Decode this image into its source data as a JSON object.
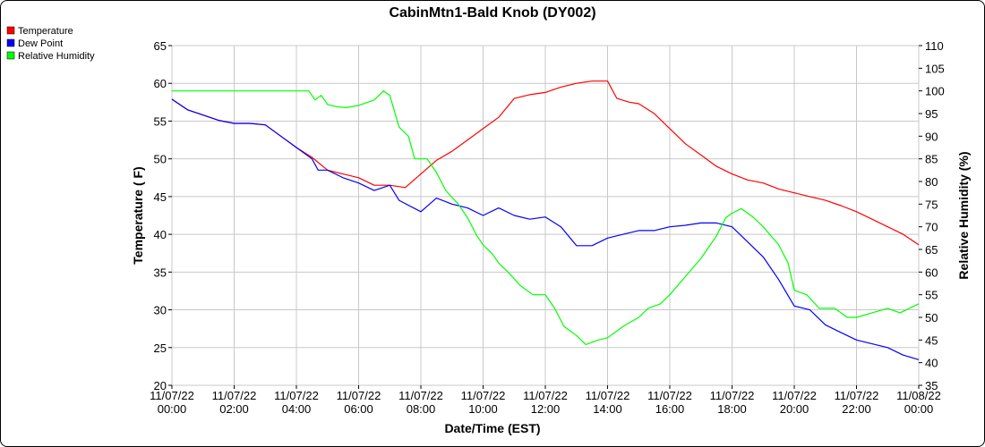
{
  "chart_data": {
    "type": "line",
    "title": "CabinMtn1-Bald Knob (DY002)",
    "xlabel": "Date/Time (EST)",
    "ylabel_left": "Temperature ( F)",
    "ylabel_right": "Relative Humidity (%)",
    "ylim_left": [
      20,
      65
    ],
    "yticks_left": [
      20,
      25,
      30,
      35,
      40,
      45,
      50,
      55,
      60,
      65
    ],
    "ylim_right": [
      35,
      110
    ],
    "yticks_right": [
      35,
      40,
      45,
      50,
      55,
      60,
      65,
      70,
      75,
      80,
      85,
      90,
      95,
      100,
      105,
      110
    ],
    "xlim": [
      0,
      24
    ],
    "x_ticks": [
      {
        "x": 0,
        "date": "11/07/22",
        "time": "00:00"
      },
      {
        "x": 2,
        "date": "11/07/22",
        "time": "02:00"
      },
      {
        "x": 4,
        "date": "11/07/22",
        "time": "04:00"
      },
      {
        "x": 6,
        "date": "11/07/22",
        "time": "06:00"
      },
      {
        "x": 8,
        "date": "11/07/22",
        "time": "08:00"
      },
      {
        "x": 10,
        "date": "11/07/22",
        "time": "10:00"
      },
      {
        "x": 12,
        "date": "11/07/22",
        "time": "12:00"
      },
      {
        "x": 14,
        "date": "11/07/22",
        "time": "14:00"
      },
      {
        "x": 16,
        "date": "11/07/22",
        "time": "16:00"
      },
      {
        "x": 18,
        "date": "11/07/22",
        "time": "18:00"
      },
      {
        "x": 20,
        "date": "11/07/22",
        "time": "20:00"
      },
      {
        "x": 22,
        "date": "11/07/22",
        "time": "22:00"
      },
      {
        "x": 24,
        "date": "11/08/22",
        "time": "00:00"
      }
    ],
    "grid": true,
    "legend_position": "top-left",
    "series": [
      {
        "name": "Temperature",
        "color": "#ff0000",
        "axis": "left",
        "points": [
          [
            0,
            57.9
          ],
          [
            0.5,
            56.5
          ],
          [
            1,
            55.8
          ],
          [
            1.5,
            55.1
          ],
          [
            2,
            54.7
          ],
          [
            2.5,
            54.7
          ],
          [
            3,
            54.5
          ],
          [
            3.5,
            53.0
          ],
          [
            4,
            51.5
          ],
          [
            4.5,
            50.2
          ],
          [
            5,
            48.5
          ],
          [
            5.5,
            48.0
          ],
          [
            6,
            47.5
          ],
          [
            6.5,
            46.5
          ],
          [
            7,
            46.5
          ],
          [
            7.5,
            46.2
          ],
          [
            8,
            48.0
          ],
          [
            8.5,
            49.8
          ],
          [
            9,
            51.0
          ],
          [
            9.5,
            52.5
          ],
          [
            10,
            54.0
          ],
          [
            10.5,
            55.5
          ],
          [
            11,
            58.0
          ],
          [
            11.5,
            58.5
          ],
          [
            12,
            58.8
          ],
          [
            12.5,
            59.5
          ],
          [
            13,
            60.0
          ],
          [
            13.5,
            60.3
          ],
          [
            14,
            60.3
          ],
          [
            14.3,
            58.0
          ],
          [
            14.7,
            57.5
          ],
          [
            15,
            57.3
          ],
          [
            15.5,
            56.0
          ],
          [
            16,
            54.0
          ],
          [
            16.5,
            52.0
          ],
          [
            17,
            50.5
          ],
          [
            17.5,
            49.0
          ],
          [
            18,
            48.0
          ],
          [
            18.5,
            47.2
          ],
          [
            19,
            46.8
          ],
          [
            19.5,
            46.0
          ],
          [
            20,
            45.5
          ],
          [
            20.5,
            45.0
          ],
          [
            21,
            44.5
          ],
          [
            21.5,
            43.8
          ],
          [
            22,
            43.0
          ],
          [
            22.5,
            42.0
          ],
          [
            23,
            41.0
          ],
          [
            23.5,
            40.0
          ],
          [
            24,
            38.6
          ]
        ]
      },
      {
        "name": "Dew Point",
        "color": "#0000ff",
        "axis": "left",
        "points": [
          [
            0,
            57.9
          ],
          [
            0.5,
            56.5
          ],
          [
            1,
            55.8
          ],
          [
            1.5,
            55.1
          ],
          [
            2,
            54.7
          ],
          [
            2.5,
            54.7
          ],
          [
            3,
            54.5
          ],
          [
            3.5,
            53.0
          ],
          [
            4,
            51.5
          ],
          [
            4.5,
            50.0
          ],
          [
            4.7,
            48.5
          ],
          [
            5,
            48.5
          ],
          [
            5.5,
            47.5
          ],
          [
            6,
            46.8
          ],
          [
            6.5,
            45.8
          ],
          [
            7,
            46.5
          ],
          [
            7.3,
            44.5
          ],
          [
            8,
            43.0
          ],
          [
            8.5,
            44.8
          ],
          [
            9,
            44.0
          ],
          [
            9.5,
            43.5
          ],
          [
            10,
            42.5
          ],
          [
            10.5,
            43.5
          ],
          [
            11,
            42.5
          ],
          [
            11.5,
            42.0
          ],
          [
            12,
            42.3
          ],
          [
            12.5,
            41.0
          ],
          [
            13,
            38.5
          ],
          [
            13.5,
            38.5
          ],
          [
            14,
            39.5
          ],
          [
            14.5,
            40.0
          ],
          [
            15,
            40.5
          ],
          [
            15.5,
            40.5
          ],
          [
            16,
            41.0
          ],
          [
            16.5,
            41.2
          ],
          [
            17,
            41.5
          ],
          [
            17.5,
            41.5
          ],
          [
            18,
            41.0
          ],
          [
            18.5,
            39.0
          ],
          [
            19,
            37.0
          ],
          [
            19.5,
            34.0
          ],
          [
            20,
            30.5
          ],
          [
            20.5,
            30.0
          ],
          [
            21,
            28.0
          ],
          [
            21.5,
            27.0
          ],
          [
            22,
            26.0
          ],
          [
            22.5,
            25.5
          ],
          [
            23,
            25.0
          ],
          [
            23.5,
            24.0
          ],
          [
            24,
            23.4
          ]
        ]
      },
      {
        "name": "Relative Humidity",
        "color": "#00ff00",
        "axis": "right",
        "points": [
          [
            0,
            100
          ],
          [
            1,
            100
          ],
          [
            2,
            100
          ],
          [
            3,
            100
          ],
          [
            4,
            100
          ],
          [
            4.4,
            100
          ],
          [
            4.6,
            98
          ],
          [
            4.8,
            99
          ],
          [
            5,
            97
          ],
          [
            5.3,
            96.5
          ],
          [
            5.6,
            96.3
          ],
          [
            6,
            96.8
          ],
          [
            6.5,
            98
          ],
          [
            6.8,
            100
          ],
          [
            7,
            99
          ],
          [
            7.3,
            92
          ],
          [
            7.6,
            90
          ],
          [
            7.8,
            85
          ],
          [
            8.2,
            85
          ],
          [
            8.5,
            82
          ],
          [
            8.8,
            78
          ],
          [
            9.2,
            75
          ],
          [
            9.5,
            72
          ],
          [
            9.8,
            68
          ],
          [
            10,
            66
          ],
          [
            10.3,
            64
          ],
          [
            10.5,
            62
          ],
          [
            10.8,
            60
          ],
          [
            11.2,
            57
          ],
          [
            11.6,
            55
          ],
          [
            12,
            55
          ],
          [
            12.3,
            52
          ],
          [
            12.6,
            48
          ],
          [
            13,
            46
          ],
          [
            13.3,
            44
          ],
          [
            13.7,
            45
          ],
          [
            14,
            45.5
          ],
          [
            14.5,
            48
          ],
          [
            15,
            50
          ],
          [
            15.3,
            52
          ],
          [
            15.7,
            53
          ],
          [
            16,
            55
          ],
          [
            16.5,
            59
          ],
          [
            17,
            63
          ],
          [
            17.5,
            68
          ],
          [
            17.8,
            72
          ],
          [
            18,
            73
          ],
          [
            18.3,
            74
          ],
          [
            18.7,
            72
          ],
          [
            19,
            70
          ],
          [
            19.5,
            66
          ],
          [
            19.8,
            62
          ],
          [
            20,
            56
          ],
          [
            20.4,
            55
          ],
          [
            20.8,
            52
          ],
          [
            21.3,
            52
          ],
          [
            21.7,
            50
          ],
          [
            22,
            50
          ],
          [
            22.5,
            51
          ],
          [
            23,
            52
          ],
          [
            23.4,
            51
          ],
          [
            23.7,
            52
          ],
          [
            24,
            53
          ]
        ]
      }
    ]
  }
}
